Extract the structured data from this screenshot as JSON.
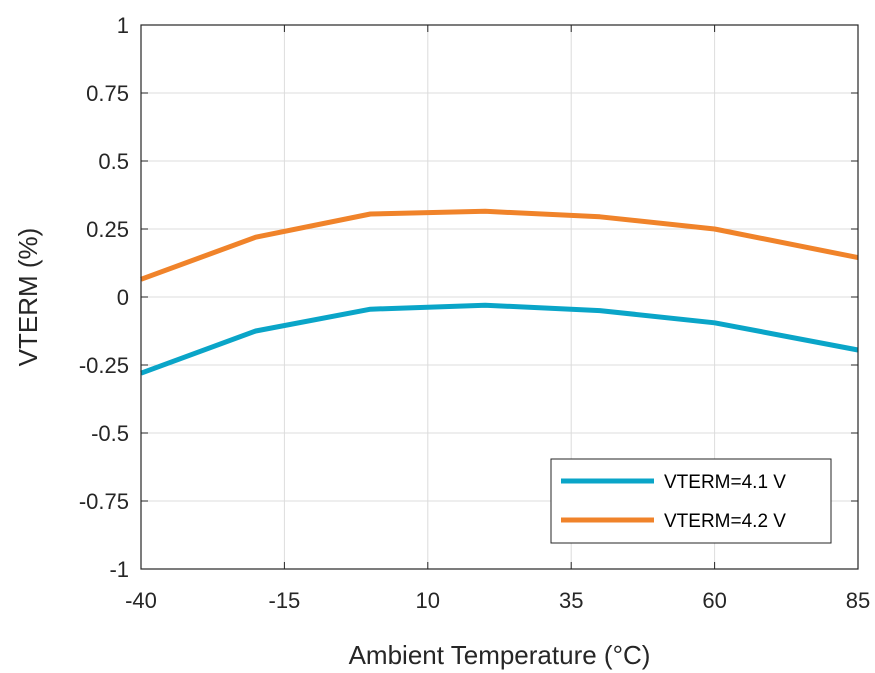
{
  "chart_data": {
    "type": "line",
    "title": "",
    "xlabel": "Ambient Temperature (°C)",
    "ylabel": "VTERM (%)",
    "xlim": [
      -40,
      85
    ],
    "ylim": [
      -1,
      1
    ],
    "x_ticks": [
      -40,
      -15,
      10,
      35,
      60,
      85
    ],
    "x_tick_labels": [
      "-40",
      "-15",
      "10",
      "35",
      "60",
      "85"
    ],
    "y_ticks": [
      1,
      0.75,
      0.5,
      0.25,
      0,
      -0.25,
      -0.5,
      -0.75,
      -1
    ],
    "y_tick_labels": [
      "1",
      "0.75",
      "0.5",
      "0.25",
      "0",
      "-0.25",
      "-0.5",
      "-0.75",
      "-1"
    ],
    "grid": true,
    "legend_position": "bottom-right",
    "series": [
      {
        "name": "VTERM=4.1 V",
        "color": "#0aa5c8",
        "x": [
          -40,
          -20,
          0,
          20,
          40,
          60,
          85
        ],
        "y": [
          -0.28,
          -0.125,
          -0.045,
          -0.03,
          -0.05,
          -0.095,
          -0.195
        ]
      },
      {
        "name": "VTERM=4.2 V",
        "color": "#f0832a",
        "x": [
          -40,
          -20,
          0,
          20,
          40,
          60,
          85
        ],
        "y": [
          0.065,
          0.22,
          0.305,
          0.315,
          0.295,
          0.25,
          0.145
        ]
      }
    ]
  }
}
